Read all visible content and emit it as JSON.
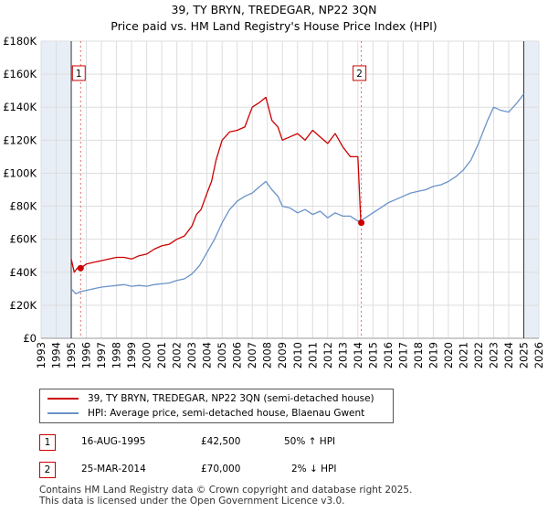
{
  "title": "39, TY BRYN, TREDEGAR, NP22 3QN",
  "subtitle": "Price paid vs. HM Land Registry's House Price Index (HPI)",
  "legend": {
    "property": "39, TY BRYN, TREDEGAR, NP22 3QN (semi-detached house)",
    "hpi": "HPI: Average price, semi-detached house, Blaenau Gwent"
  },
  "transactions": [
    {
      "num": "1",
      "date": "16-AUG-1995",
      "price": "£42,500",
      "hpi": "50% ↑ HPI"
    },
    {
      "num": "2",
      "date": "25-MAR-2014",
      "price": "£70,000",
      "hpi": "2% ↓ HPI"
    }
  ],
  "footer": {
    "line1": "Contains HM Land Registry data © Crown copyright and database right 2025.",
    "line2": "This data is licensed under the Open Government Licence v3.0."
  },
  "colors": {
    "property": "#cc0000",
    "hpi": "#6a93c8",
    "grid": "#dddddd",
    "band": "#e8eef6"
  },
  "chart_data": {
    "type": "line",
    "xlim": [
      1993,
      2026
    ],
    "ylim": [
      0,
      180000
    ],
    "yticks": [
      0,
      20000,
      40000,
      60000,
      80000,
      100000,
      120000,
      140000,
      160000,
      180000
    ],
    "ytick_labels": [
      "£0",
      "£20K",
      "£40K",
      "£60K",
      "£80K",
      "£100K",
      "£120K",
      "£140K",
      "£160K",
      "£180K"
    ],
    "xticks": [
      1993,
      1994,
      1995,
      1996,
      1997,
      1998,
      1999,
      2000,
      2001,
      2002,
      2003,
      2004,
      2005,
      2006,
      2007,
      2008,
      2009,
      2010,
      2011,
      2012,
      2013,
      2014,
      2015,
      2016,
      2017,
      2018,
      2019,
      2020,
      2021,
      2022,
      2023,
      2024,
      2025,
      2026
    ],
    "xtick_labels": [
      "1993",
      "1994",
      "1995",
      "1996",
      "1997",
      "1998",
      "1999",
      "2000",
      "2001",
      "2002",
      "2003",
      "2004",
      "2005",
      "2006",
      "2007",
      "2008",
      "2009",
      "2010",
      "2011",
      "2012",
      "2013",
      "2014",
      "2015",
      "2016",
      "2017",
      "2018",
      "2019",
      "2020",
      "2021",
      "2022",
      "2023",
      "2024",
      "2025",
      "2026"
    ],
    "shaded_ranges": [
      [
        1993,
        1995.0
      ],
      [
        2025.0,
        2026
      ]
    ],
    "series": [
      {
        "name": "39, TY BRYN, TREDEGAR, NP22 3QN (semi-detached house)",
        "x": [
          1995.0,
          1995.2,
          1995.4,
          1995.62,
          1996.0,
          1996.5,
          1997.0,
          1997.5,
          1998.0,
          1998.5,
          1999.0,
          1999.5,
          2000.0,
          2000.5,
          2001.0,
          2001.5,
          2002.0,
          2002.5,
          2003.0,
          2003.3,
          2003.6,
          2004.0,
          2004.3,
          2004.6,
          2005.0,
          2005.5,
          2006.0,
          2006.5,
          2007.0,
          2007.5,
          2007.9,
          2008.3,
          2008.7,
          2009.0,
          2009.5,
          2010.0,
          2010.5,
          2011.0,
          2011.5,
          2012.0,
          2012.5,
          2013.0,
          2013.5,
          2014.0,
          2014.2
        ],
        "values": [
          48000,
          40000,
          42500,
          42500,
          45000,
          46000,
          47000,
          48000,
          49000,
          49000,
          48000,
          50000,
          51000,
          54000,
          56000,
          57000,
          60000,
          62000,
          68000,
          75000,
          78000,
          88000,
          95000,
          108000,
          120000,
          125000,
          126000,
          128000,
          140000,
          143000,
          146000,
          132000,
          128000,
          120000,
          122000,
          124000,
          120000,
          126000,
          122000,
          118000,
          124000,
          116000,
          110000,
          110000,
          70000
        ]
      },
      {
        "name": "HPI: Average price, semi-detached house, Blaenau Gwent",
        "x": [
          1995.0,
          1995.3,
          1995.62,
          1996.0,
          1996.5,
          1997.0,
          1997.5,
          1998.0,
          1998.5,
          1999.0,
          1999.5,
          2000.0,
          2000.5,
          2001.0,
          2001.5,
          2002.0,
          2002.5,
          2003.0,
          2003.5,
          2004.0,
          2004.5,
          2005.0,
          2005.5,
          2006.0,
          2006.5,
          2007.0,
          2007.5,
          2007.9,
          2008.3,
          2008.7,
          2009.0,
          2009.5,
          2010.0,
          2010.5,
          2011.0,
          2011.5,
          2012.0,
          2012.5,
          2013.0,
          2013.5,
          2014.0,
          2014.23,
          2014.5,
          2015.0,
          2015.5,
          2016.0,
          2016.5,
          2017.0,
          2017.5,
          2018.0,
          2018.5,
          2019.0,
          2019.5,
          2020.0,
          2020.5,
          2021.0,
          2021.5,
          2022.0,
          2022.3,
          2022.6,
          2023.0,
          2023.5,
          2024.0,
          2024.5,
          2025.0
        ],
        "values": [
          30000,
          27000,
          28300,
          29000,
          30000,
          31000,
          31500,
          32000,
          32500,
          31500,
          32000,
          31500,
          32500,
          33000,
          33500,
          35000,
          36000,
          39000,
          44000,
          52000,
          60000,
          70000,
          78000,
          83000,
          86000,
          88000,
          92000,
          95000,
          90000,
          86000,
          80000,
          79000,
          76000,
          78000,
          75000,
          77000,
          73000,
          76000,
          74000,
          74000,
          71000,
          71500,
          73000,
          76000,
          79000,
          82000,
          84000,
          86000,
          88000,
          89000,
          90000,
          92000,
          93000,
          95000,
          98000,
          102000,
          108000,
          118000,
          125000,
          132000,
          140000,
          138000,
          137000,
          142000,
          148000
        ]
      }
    ],
    "markers": [
      {
        "label": "1",
        "x": 1995.62,
        "y": 42500
      },
      {
        "label": "2",
        "x": 2014.23,
        "y": 70000
      }
    ]
  }
}
